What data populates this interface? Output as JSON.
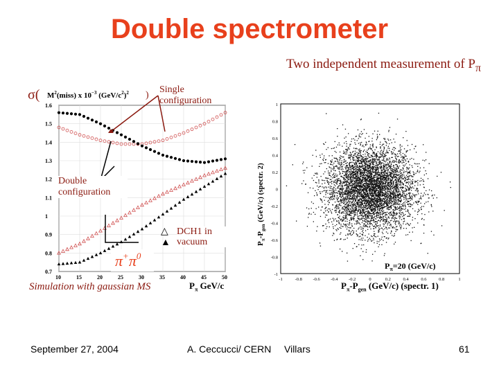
{
  "slide": {
    "title": "Double spectrometer",
    "subtitle": "Two independent measurement of P",
    "subtitle_sub": "π",
    "accent_color": "#e8401c",
    "annotation_color": "#8b1a10"
  },
  "left_plot": {
    "ylabel_sigma": "σ(",
    "ylabel_main": "M",
    "ylabel_sup2": "2",
    "ylabel_rest": "(miss) x 10",
    "ylabel_exp": "−3",
    "ylabel_unit": "(GeV/c",
    "ylabel_unit_sup": "2",
    "ylabel_unit_close": ")",
    "ylabel_unit_sup2": "2",
    "ylabel_close": ")",
    "single_label": "Single configuration",
    "double_label": "Double configuration",
    "legend_open": "DCH1 in vacuum",
    "legend_open_marker": "△",
    "legend_filled_marker": "▲",
    "channel": "π",
    "channel_sup1": "+",
    "channel_mid": "π",
    "channel_sup2": "0",
    "caption": "Simulation with gaussian MS",
    "xlabel": "P",
    "xlabel_sub": "π",
    "xlabel_unit": "GeV/c"
  },
  "chart_data": [
    {
      "type": "scatter",
      "xlabel": "P_π GeV/c",
      "ylabel": "σ( M²(miss) x 10⁻³ (GeV/c²)² )",
      "xlim": [
        10,
        50
      ],
      "ylim": [
        0.7,
        1.6
      ],
      "xticks": [
        "10",
        "15",
        "20",
        "25",
        "30",
        "35",
        "40",
        "45",
        "50"
      ],
      "yticks": [
        "0.7",
        "0.8",
        "0.9",
        "1",
        "1.1",
        "1.2",
        "1.3",
        "1.4",
        "1.5",
        "1.6"
      ],
      "series": [
        {
          "name": "Single configuration",
          "marker": "open-circle",
          "x": [
            10,
            15,
            20,
            25,
            30,
            35,
            40,
            45,
            50
          ],
          "y": [
            1.48,
            1.44,
            1.41,
            1.39,
            1.39,
            1.41,
            1.45,
            1.5,
            1.56
          ]
        },
        {
          "name": "Single configuration",
          "marker": "filled-circle",
          "x": [
            10,
            15,
            20,
            25,
            30,
            35,
            40,
            45,
            50
          ],
          "y": [
            1.56,
            1.55,
            1.5,
            1.44,
            1.38,
            1.33,
            1.3,
            1.29,
            1.31
          ]
        },
        {
          "name": "DCH1 in vacuum",
          "marker": "open-triangle",
          "x": [
            10,
            15,
            20,
            25,
            30,
            35,
            40,
            45,
            50
          ],
          "y": [
            0.8,
            0.85,
            0.92,
            0.99,
            1.06,
            1.12,
            1.17,
            1.22,
            1.26
          ]
        },
        {
          "name": "DCH1 in vacuum",
          "marker": "filled-triangle",
          "x": [
            10,
            15,
            20,
            25,
            30,
            35,
            40,
            45,
            50
          ],
          "y": [
            0.74,
            0.75,
            0.8,
            0.86,
            0.93,
            1.01,
            1.09,
            1.16,
            1.23
          ]
        }
      ]
    },
    {
      "type": "scatter",
      "xlabel": "P_π-P_gen (GeV/c) (spectr. 1)",
      "ylabel": "P_π-P_gen (GeV/c) (spectr. 2)",
      "xlim": [
        -1,
        1
      ],
      "ylim": [
        -1,
        1
      ],
      "xticks": [
        "-1",
        "-0.8",
        "-0.6",
        "-0.4",
        "-0.2",
        "0",
        "0.2",
        "0.4",
        "0.6",
        "0.8",
        "1"
      ],
      "yticks": [
        "-1",
        "-0.8",
        "-0.6",
        "-0.4",
        "-0.2",
        "0",
        "0.2",
        "0.4",
        "0.6",
        "0.8",
        "1"
      ],
      "annotation": "P_π=20 (GeV/c)",
      "distribution": {
        "center": [
          0,
          0
        ],
        "sigma": 0.25
      }
    }
  ],
  "right_plot": {
    "ylabel": "P",
    "ylabel_sub": "π",
    "ylabel_mid": "-P",
    "ylabel_sub2": "gen",
    "ylabel_rest": "(GeV/c) (spectr. 2)",
    "xlabel": "P",
    "xlabel_sub": "π",
    "xlabel_mid": "-P",
    "xlabel_sub2": "gen",
    "xlabel_rest": "(GeV/c) (spectr. 1)",
    "note": "P",
    "note_sub": "π",
    "note_rest": "=20 (GeV/c)"
  },
  "footer": {
    "date": "September 27, 2004",
    "author": "A. Ceccucci/ CERN",
    "place": "Villars",
    "page": "61"
  }
}
